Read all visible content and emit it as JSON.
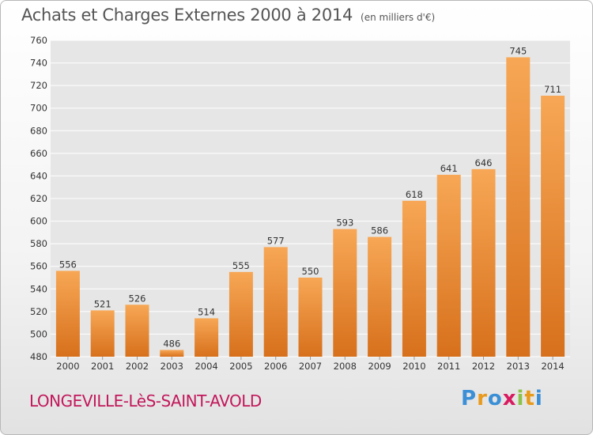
{
  "header": {
    "title": "Achats et Charges Externes 2000 à 2014",
    "subtitle": "(en milliers d'€)"
  },
  "footer": {
    "place": "LONGEVILLE-LèS-SAINT-AVOLD",
    "logo_letters": [
      "P",
      "r",
      "o",
      "x",
      "i",
      "t",
      "i"
    ],
    "logo_colors": [
      "#3a8fd6",
      "#e89a1c",
      "#3a8fd6",
      "#d81b60",
      "#8bc34a",
      "#e89a1c",
      "#3a8fd6"
    ]
  },
  "colors": {
    "bar_top": "#f7a755",
    "bar_bottom": "#d7701c",
    "grid": "#ffffff",
    "plot_bg": "#e6e6e6",
    "text": "#333333"
  },
  "chart_data": {
    "type": "bar",
    "title": "Achats et Charges Externes 2000 à 2014",
    "subtitle": "(en milliers d'€)",
    "categories": [
      "2000",
      "2001",
      "2002",
      "2003",
      "2004",
      "2005",
      "2006",
      "2007",
      "2008",
      "2009",
      "2010",
      "2011",
      "2012",
      "2013",
      "2014"
    ],
    "values": [
      556,
      521,
      526,
      486,
      514,
      555,
      577,
      550,
      593,
      586,
      618,
      641,
      646,
      745,
      711
    ],
    "ylim": [
      480,
      760
    ],
    "yticks": [
      480,
      500,
      520,
      540,
      560,
      580,
      600,
      620,
      640,
      660,
      680,
      700,
      720,
      740,
      760
    ],
    "grid": true,
    "legend": false
  }
}
